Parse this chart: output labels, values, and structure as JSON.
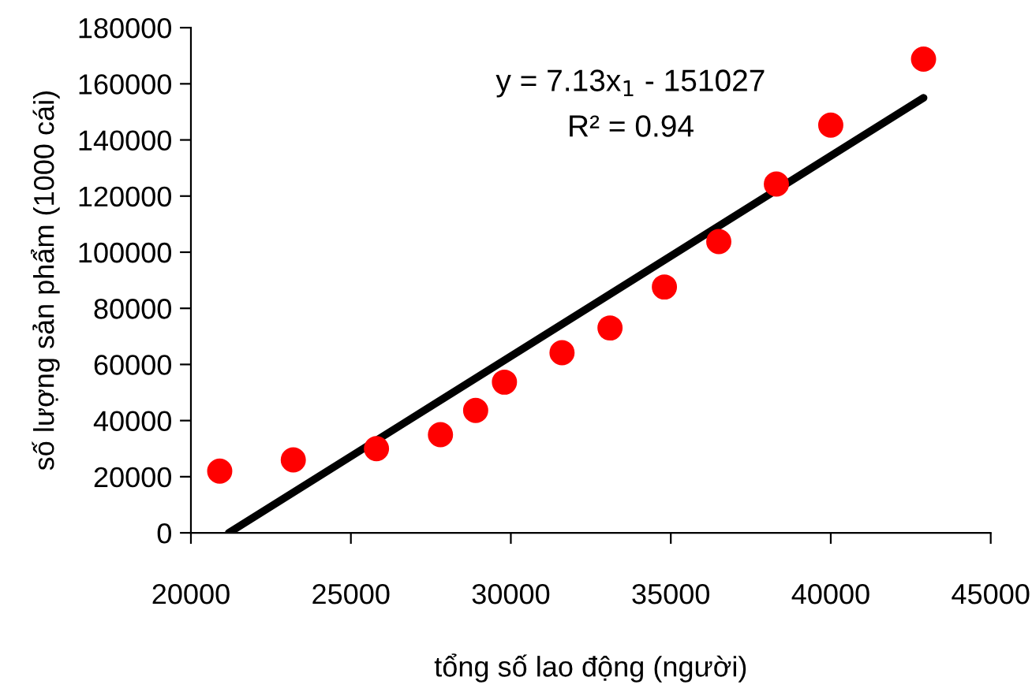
{
  "chart_data": {
    "type": "scatter",
    "xlabel": "tổng số lao động (người)",
    "ylabel": "số lượng sản phẩm (1000 cái)",
    "xlim": [
      20000,
      45000
    ],
    "xticks": [
      20000,
      25000,
      30000,
      35000,
      40000,
      45000
    ],
    "ylim": [
      0,
      180000
    ],
    "yticks": [
      0,
      20000,
      40000,
      60000,
      80000,
      100000,
      120000,
      140000,
      160000,
      180000
    ],
    "grid": false,
    "legend": false,
    "marker": "circle",
    "series": [
      {
        "color": "#ff0000",
        "x": [
          20900,
          23200,
          25800,
          27800,
          28900,
          29800,
          31600,
          33100,
          34800,
          36500,
          38300,
          40000,
          42900
        ],
        "values": [
          22000,
          26000,
          30000,
          35000,
          43600,
          53700,
          64200,
          73000,
          87600,
          103800,
          124300,
          145300,
          168800
        ]
      },
      {
        "type": "line",
        "color": "#000000",
        "line_style": "solid",
        "marker": "none",
        "x": [
          21182,
          42900
        ],
        "values": [
          0,
          155000
        ]
      }
    ],
    "annotations": [
      {
        "text": "y = 7.13x$_{1}$ - 151027"
      },
      {
        "text": "R² = 0.94"
      }
    ]
  }
}
